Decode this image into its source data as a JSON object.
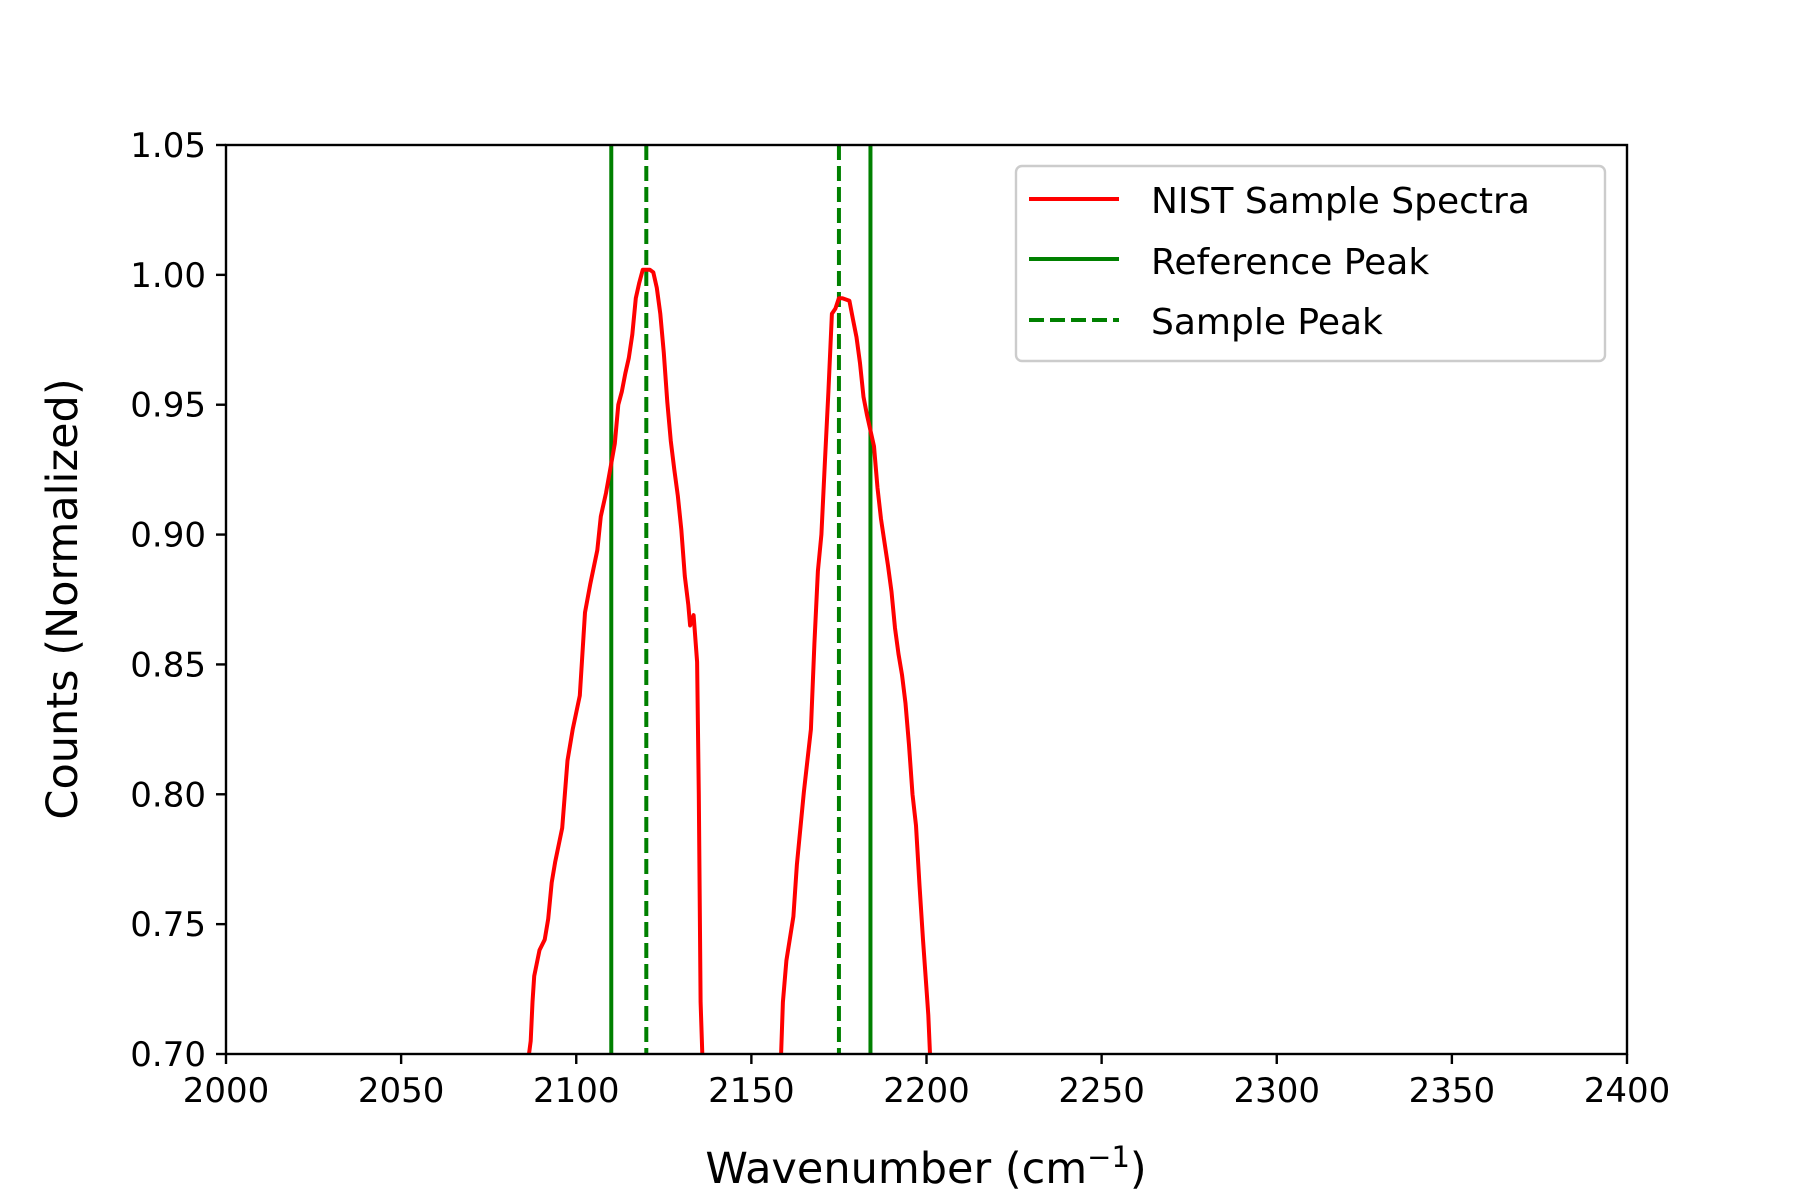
{
  "chart_data": {
    "type": "line",
    "title": "",
    "xlabel": "Wavenumber (cm",
    "xlabel_unit_sup": "−1",
    "xlabel_close": ")",
    "ylabel": "Counts (Normalized)",
    "xlim": [
      2000,
      2400
    ],
    "ylim": [
      0.7,
      1.05
    ],
    "x_ticks": [
      2000,
      2050,
      2100,
      2150,
      2200,
      2250,
      2300,
      2350,
      2400
    ],
    "y_ticks": [
      0.7,
      0.75,
      0.8,
      0.85,
      0.9,
      0.95,
      1.0,
      1.05
    ],
    "y_tick_labels": [
      "0.70",
      "0.75",
      "0.80",
      "0.85",
      "0.90",
      "0.95",
      "1.00",
      "1.05"
    ],
    "grid": false,
    "legend_position": "upper right",
    "series": [
      {
        "name": "NIST Sample Spectra",
        "color": "#ff0000",
        "style": "solid",
        "segments": [
          [
            [
              2086.5,
              0.7
            ],
            [
              2087,
              0.705
            ],
            [
              2087.5,
              0.72
            ],
            [
              2088,
              0.73
            ],
            [
              2089.5,
              0.74
            ],
            [
              2091,
              0.744
            ],
            [
              2092,
              0.752
            ],
            [
              2093,
              0.766
            ],
            [
              2094,
              0.774
            ],
            [
              2096,
              0.787
            ],
            [
              2097.5,
              0.813
            ],
            [
              2099,
              0.825
            ],
            [
              2101,
              0.838
            ],
            [
              2102.5,
              0.87
            ],
            [
              2104,
              0.881
            ],
            [
              2106,
              0.894
            ],
            [
              2107,
              0.907
            ],
            [
              2108.5,
              0.916
            ],
            [
              2111,
              0.935
            ],
            [
              2112,
              0.95
            ],
            [
              2113,
              0.955
            ],
            [
              2114,
              0.962
            ],
            [
              2115,
              0.968
            ],
            [
              2116,
              0.977
            ],
            [
              2117,
              0.991
            ],
            [
              2118,
              0.997
            ],
            [
              2119,
              1.002
            ],
            [
              2120,
              1.002
            ],
            [
              2121,
              1.002
            ],
            [
              2122,
              1.001
            ],
            [
              2123,
              0.995
            ],
            [
              2124,
              0.985
            ],
            [
              2125,
              0.97
            ],
            [
              2126,
              0.951
            ],
            [
              2127,
              0.936
            ],
            [
              2128,
              0.925
            ],
            [
              2129,
              0.915
            ],
            [
              2130,
              0.902
            ],
            [
              2131,
              0.884
            ],
            [
              2132,
              0.873
            ],
            [
              2132.5,
              0.865
            ],
            [
              2133.5,
              0.869
            ],
            [
              2134.5,
              0.851
            ],
            [
              2135,
              0.8
            ],
            [
              2135.5,
              0.72
            ],
            [
              2136,
              0.7
            ]
          ],
          [
            [
              2158.5,
              0.7
            ],
            [
              2159,
              0.72
            ],
            [
              2160,
              0.736
            ],
            [
              2162,
              0.753
            ],
            [
              2163,
              0.773
            ],
            [
              2165,
              0.801
            ],
            [
              2167,
              0.825
            ],
            [
              2168,
              0.858
            ],
            [
              2169,
              0.886
            ],
            [
              2170,
              0.9
            ],
            [
              2171,
              0.928
            ],
            [
              2172,
              0.955
            ],
            [
              2173,
              0.985
            ],
            [
              2174,
              0.987
            ],
            [
              2175,
              0.991
            ],
            [
              2176,
              0.991
            ],
            [
              2178,
              0.99
            ],
            [
              2179,
              0.983
            ],
            [
              2180,
              0.976
            ],
            [
              2181,
              0.966
            ],
            [
              2182,
              0.953
            ],
            [
              2183,
              0.946
            ],
            [
              2185,
              0.934
            ],
            [
              2186,
              0.918
            ],
            [
              2187,
              0.906
            ],
            [
              2188,
              0.897
            ],
            [
              2189,
              0.888
            ],
            [
              2190,
              0.878
            ],
            [
              2191,
              0.864
            ],
            [
              2192,
              0.854
            ],
            [
              2193,
              0.846
            ],
            [
              2194,
              0.835
            ],
            [
              2195,
              0.819
            ],
            [
              2196,
              0.8
            ],
            [
              2197,
              0.788
            ],
            [
              2198,
              0.765
            ],
            [
              2199,
              0.744
            ],
            [
              2200,
              0.725
            ],
            [
              2200.5,
              0.715
            ],
            [
              2201,
              0.7
            ]
          ]
        ]
      },
      {
        "name": "Reference Peak",
        "color": "#008000",
        "style": "solid",
        "vlines": [
          2110,
          2184
        ]
      },
      {
        "name": "Sample Peak",
        "color": "#008000",
        "style": "dashed",
        "vlines": [
          2120,
          2175
        ]
      }
    ]
  }
}
